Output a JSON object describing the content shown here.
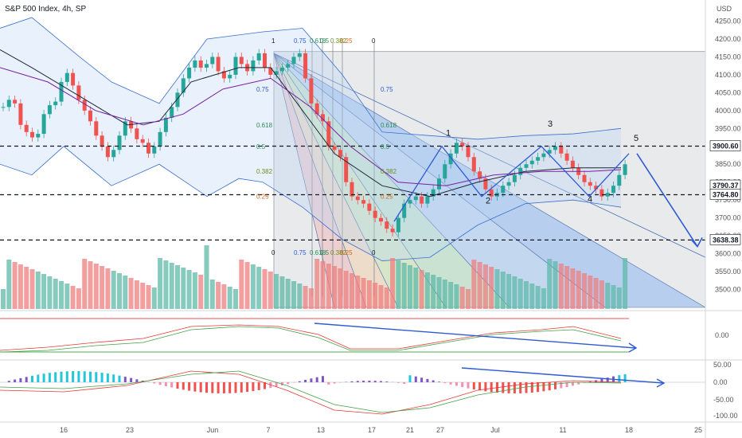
{
  "header": {
    "title": "S&P 500 Index, 4h, SP",
    "currency": "USD"
  },
  "chart_data": {
    "type": "candlestick",
    "title": "S&P 500 Index, 4h, SP",
    "y_axis": {
      "range": [
        3450,
        4260
      ],
      "ticks": [
        3500,
        3550,
        3600,
        3650,
        3700,
        3750,
        3800,
        3850,
        3900,
        3950,
        4000,
        4050,
        4100,
        4150,
        4200,
        4250
      ]
    },
    "x_ticks": [
      "16",
      "23",
      "Jun",
      "7",
      "13",
      "17",
      "21",
      "27",
      "Jul",
      "11",
      "18",
      "25"
    ],
    "price_tags": [
      {
        "value": "3900.60"
      },
      {
        "value": "3790.37"
      },
      {
        "value": "3764.80"
      },
      {
        "value": "3638.38"
      }
    ],
    "wave_labels": [
      "1",
      "2",
      "3",
      "4",
      "5"
    ],
    "fib_fan_labels_top": [
      "1",
      "0.75",
      "0.618",
      "0.5",
      "0.382",
      "0.25",
      "0"
    ],
    "fib_levels_left": [
      "0.75",
      "0.618",
      "0.5",
      "0.382",
      "0.25"
    ],
    "fib_levels_right": [
      "0.75",
      "0.618",
      "0.5",
      "0.382",
      "0.25"
    ],
    "fib_fan_labels_bottom": [
      "0",
      "0.75",
      "0.618",
      "0.5",
      "0.382",
      "0.25",
      "0"
    ],
    "close": [
      4010,
      4030,
      4020,
      3960,
      3940,
      3925,
      3935,
      3990,
      4015,
      4025,
      4080,
      4105,
      4070,
      4030,
      4000,
      3970,
      3930,
      3900,
      3870,
      3890,
      3930,
      3970,
      3950,
      3920,
      3910,
      3880,
      3900,
      3940,
      3980,
      4010,
      4050,
      4090,
      4120,
      4140,
      4120,
      4130,
      4150,
      4110,
      4090,
      4100,
      4150,
      4130,
      4110,
      4140,
      4160,
      4120,
      4100,
      4110,
      4120,
      4130,
      4150,
      4160,
      4090,
      4020,
      3990,
      3970,
      3900,
      3890,
      3870,
      3800,
      3760,
      3750,
      3740,
      3720,
      3700,
      3690,
      3670,
      3660,
      3700,
      3740,
      3750,
      3760,
      3740,
      3760,
      3780,
      3810,
      3850,
      3880,
      3910,
      3900,
      3870,
      3830,
      3810,
      3780,
      3760,
      3770,
      3790,
      3800,
      3820,
      3840,
      3850,
      3860,
      3870,
      3880,
      3890,
      3900,
      3880,
      3860,
      3840,
      3820,
      3800,
      3790,
      3780,
      3760,
      3770,
      3790,
      3820,
      3850,
      3860
    ],
    "indicators": [
      {
        "name": "oscillator",
        "y_ticks": [
          "0.00"
        ]
      },
      {
        "name": "MACD",
        "y_ticks": [
          "50.00",
          "0.00",
          "-50.00",
          "-100.00"
        ]
      }
    ]
  }
}
